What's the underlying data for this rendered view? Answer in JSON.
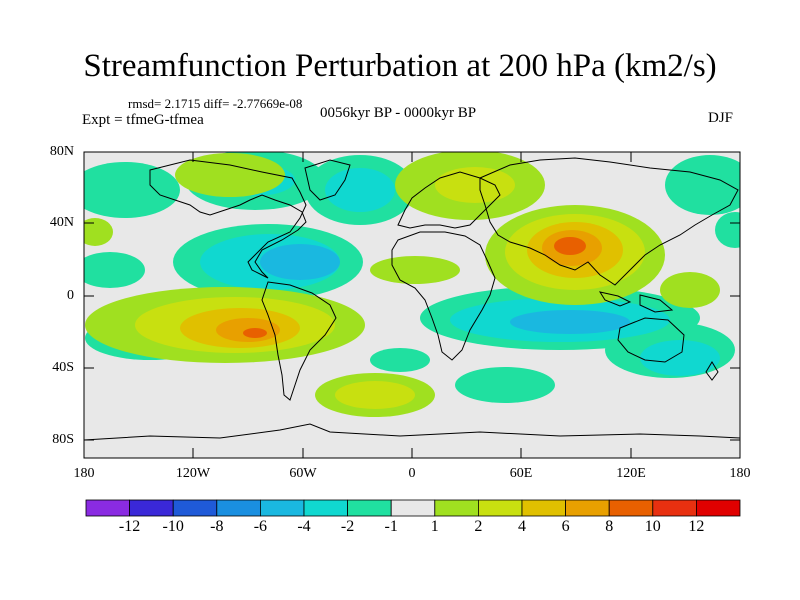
{
  "title": "Streamfunction Perturbation at 200 hPa (km2/s)",
  "stats_text": "rmsd= 2.1715 diff= -2.77669e-08",
  "experiment_text": "Expt = tfmeG-tfmea",
  "period_text": "0056kyr BP - 0000kyr BP",
  "season_text": "DJF",
  "map": {
    "lat_labels": [
      "80N",
      "40N",
      "0",
      "40S",
      "80S"
    ],
    "lon_labels": [
      "180",
      "120W",
      "60W",
      "0",
      "60E",
      "120E",
      "180"
    ]
  },
  "colorbar": {
    "labels": [
      "-12",
      "-10",
      "-8",
      "-6",
      "-4",
      "-2",
      "-1",
      "1",
      "2",
      "4",
      "6",
      "8",
      "10",
      "12"
    ],
    "colors": [
      "#8a2be2",
      "#3a28d8",
      "#1f5ad8",
      "#1a8fe0",
      "#1ab8e0",
      "#10d8d0",
      "#20e0a0",
      "#e8e8e8",
      "#a0e020",
      "#c8e010",
      "#e0c000",
      "#e8a000",
      "#e86000",
      "#e83010",
      "#e00000"
    ]
  },
  "field_colors": {
    "background": "#e8e8e8",
    "neg_weak": "#20e0a0",
    "neg_mid": "#10d8d0",
    "neg_strong": "#1ab8e0",
    "pos_weak": "#a0e020",
    "pos_mid": "#c8e010",
    "pos_strong": "#e0c000",
    "pos_vstrong": "#e8a000",
    "pos_peak": "#e86000"
  }
}
